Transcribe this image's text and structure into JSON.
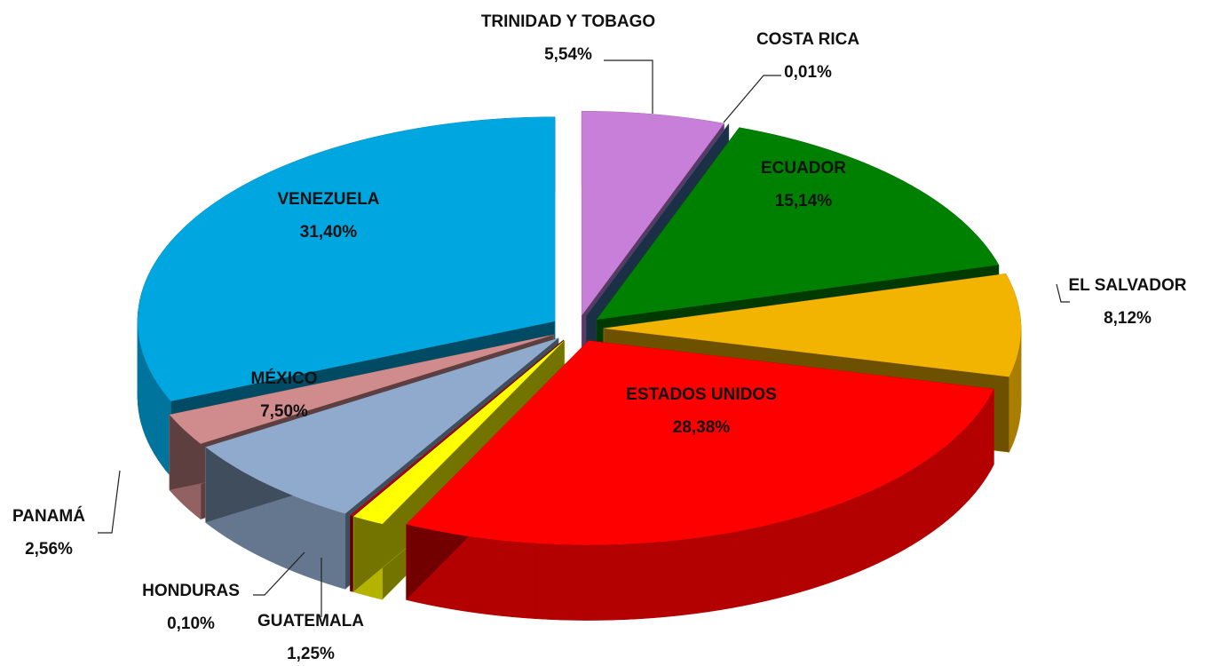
{
  "chart_data": {
    "type": "pie",
    "categories": [
      "TRINIDAD Y TOBAGO",
      "COSTA RICA",
      "ECUADOR",
      "EL SALVADOR",
      "ESTADOS UNIDOS",
      "GUATEMALA",
      "HONDURAS",
      "MÉXICO",
      "PANAMÁ",
      "VENEZUELA"
    ],
    "values": [
      5.54,
      0.01,
      15.14,
      8.12,
      28.38,
      1.25,
      0.1,
      7.5,
      2.56,
      31.4
    ],
    "value_labels": [
      "5,54%",
      "0,01%",
      "15,14%",
      "8,12%",
      "28,38%",
      "1,25%",
      "0,10%",
      "7,50%",
      "2,56%",
      "31,40%"
    ],
    "colors": [
      "#c77fd9",
      "#3d6b9e",
      "#008000",
      "#f2b400",
      "#ff0000",
      "#ffff00",
      "#c00000",
      "#8faacc",
      "#d08c8c",
      "#00a6df"
    ]
  }
}
